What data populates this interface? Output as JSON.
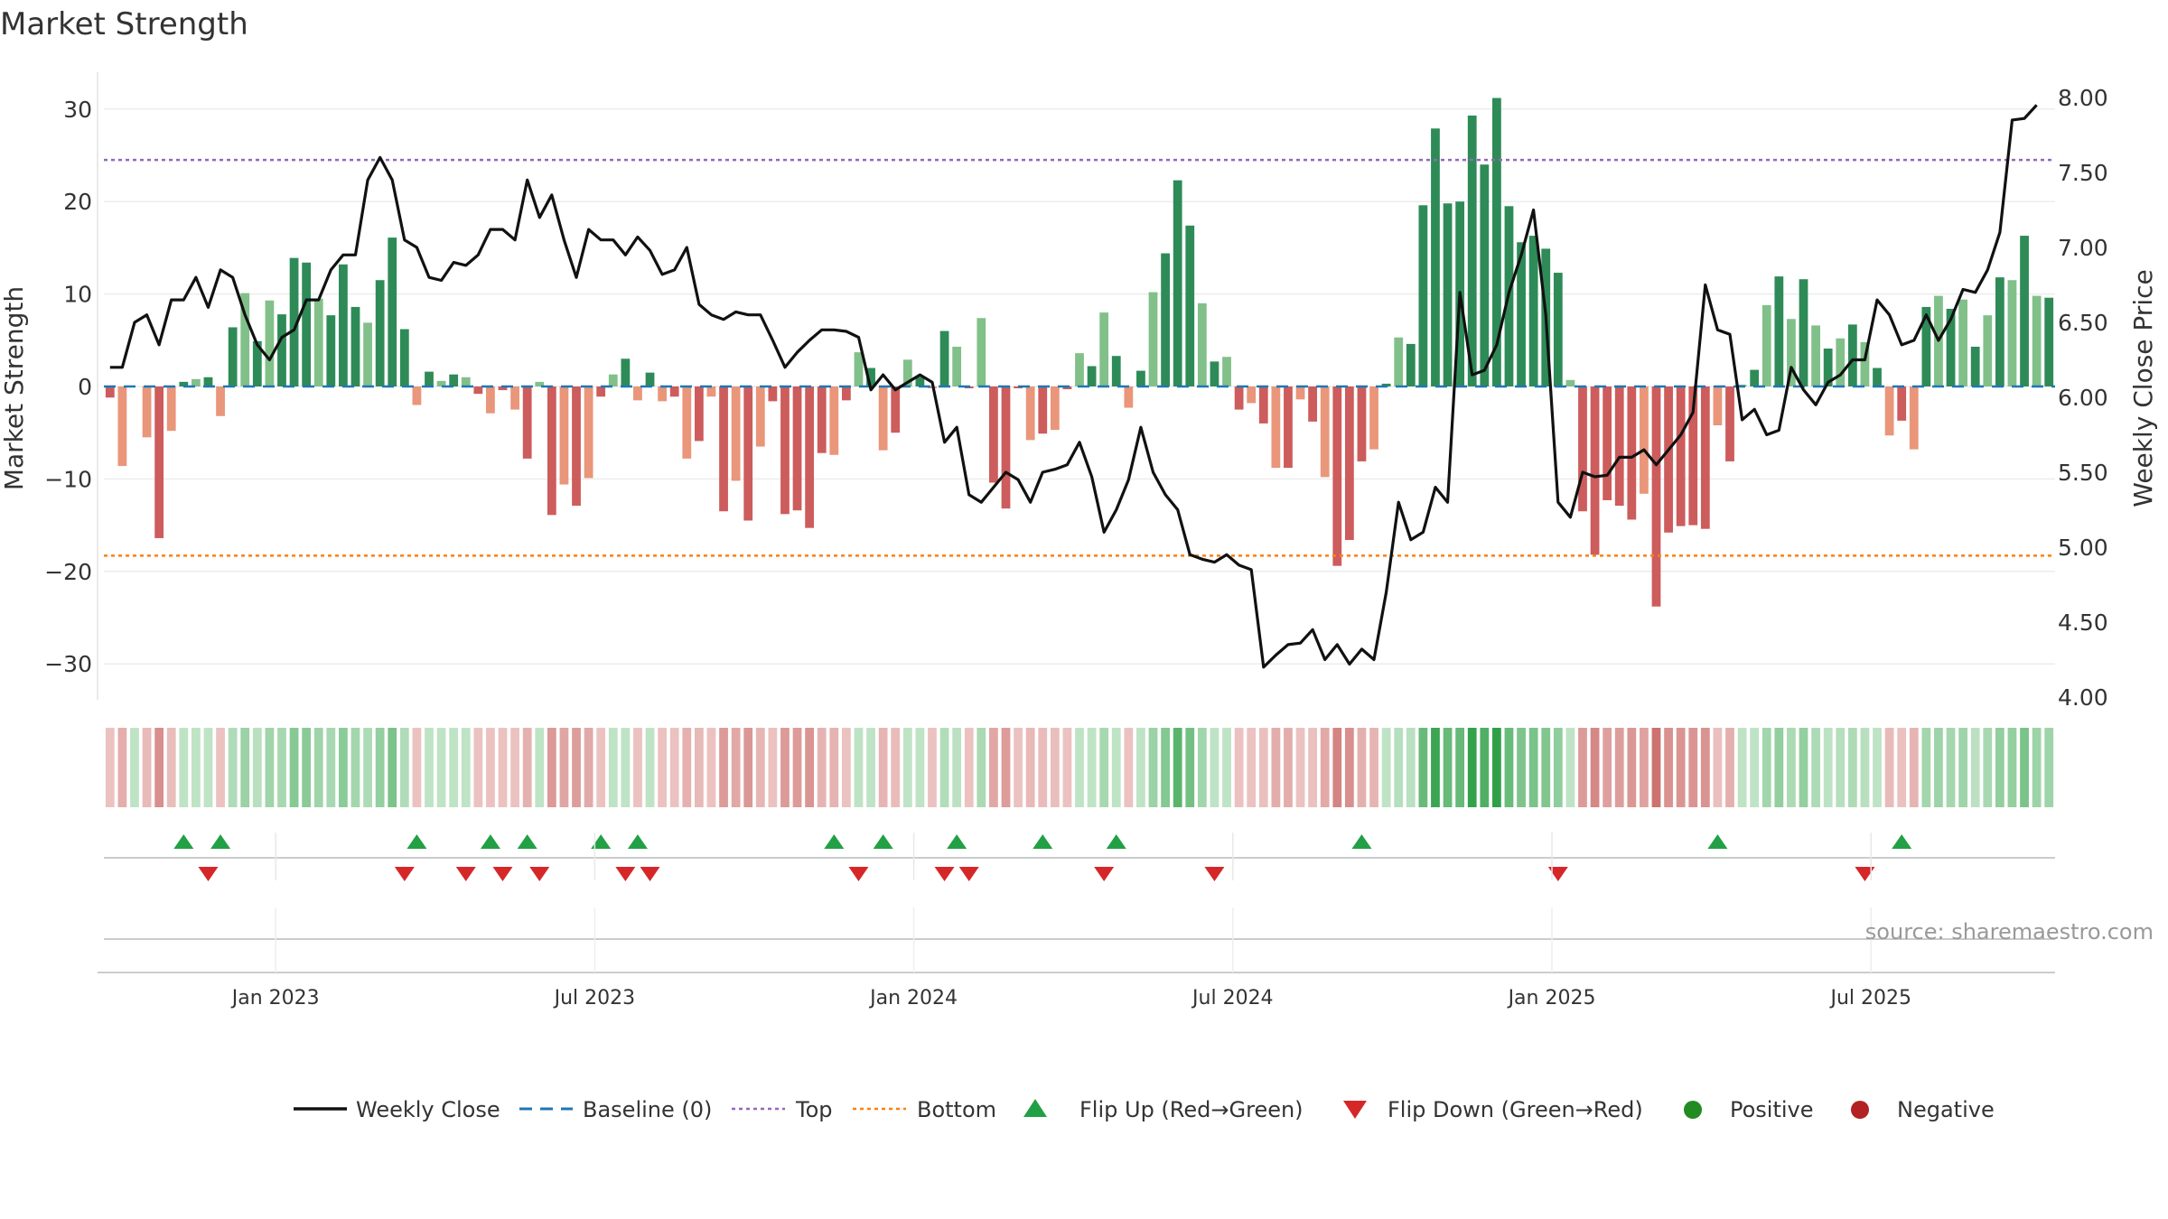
{
  "chart_data": {
    "type": "bar",
    "title": "Market Strength",
    "ylabel": "Market Strength",
    "y2label": "Weekly Close Price",
    "ylim": [
      -34,
      34
    ],
    "y2lim": [
      4.0,
      8.0
    ],
    "yticks": [
      30,
      20,
      10,
      0,
      -10,
      -20,
      -30
    ],
    "yticklabels": [
      "30",
      "20",
      "10",
      "0",
      "−10",
      "−20",
      "−30"
    ],
    "y2ticks": [
      8.0,
      7.5,
      7.0,
      6.5,
      6.0,
      5.5,
      5.0,
      4.5,
      4.0
    ],
    "y2ticklabels": [
      "8.00",
      "7.50",
      "7.00",
      "6.50",
      "6.00",
      "5.50",
      "5.00",
      "4.50",
      "4.00"
    ],
    "top_level": 24.5,
    "bottom_level": -18.3,
    "baseline": 0,
    "start_week_index_of_jan2023": 14,
    "x_tick_labels": [
      "Jan 2023",
      "Jul 2023",
      "Jan 2024",
      "Jul 2024",
      "Jan 2025",
      "Jul 2025"
    ],
    "x_tick_week_index": [
      14,
      40,
      66,
      92,
      118,
      144
    ],
    "strength": [
      -1.2,
      -8.6,
      0,
      -5.5,
      -16.4,
      -4.8,
      0.5,
      0.8,
      1.0,
      -3.2,
      6.4,
      10.1,
      4.9,
      9.3,
      7.8,
      13.9,
      13.4,
      9.5,
      7.7,
      13.2,
      8.6,
      6.9,
      11.5,
      16.1,
      6.2,
      -2.0,
      1.6,
      0.6,
      1.3,
      1.0,
      -0.8,
      -2.9,
      -0.4,
      -2.5,
      -7.8,
      0.5,
      -13.9,
      -10.6,
      -12.9,
      -9.9,
      -1.1,
      1.3,
      3.0,
      -1.5,
      1.5,
      -1.6,
      -1.1,
      -7.8,
      -5.9,
      -1.1,
      -13.5,
      -10.2,
      -14.5,
      -6.5,
      -1.6,
      -13.8,
      -13.4,
      -15.3,
      -7.2,
      -7.4,
      -1.5,
      3.7,
      2.0,
      -6.9,
      -5.0,
      2.9,
      1.0,
      -0.2,
      6.0,
      4.3,
      -0.2,
      7.4,
      -10.4,
      -13.2,
      -0.2,
      -5.8,
      -5.1,
      -4.7,
      -0.3,
      3.6,
      2.2,
      8.0,
      3.3,
      -2.3,
      1.7,
      10.2,
      14.4,
      22.3,
      17.4,
      9.0,
      2.7,
      3.2,
      -2.5,
      -1.8,
      -4.0,
      -8.8,
      -8.8,
      -1.4,
      -3.8,
      -9.8,
      -19.4,
      -16.6,
      -8.1,
      -6.8,
      0.3,
      5.3,
      4.6,
      19.6,
      27.9,
      19.8,
      20.0,
      29.3,
      24.0,
      31.2,
      19.5,
      15.6,
      16.3,
      14.9,
      12.3,
      0.7,
      -13.5,
      -18.2,
      -12.3,
      -12.9,
      -14.4,
      -11.6,
      -23.8,
      -15.8,
      -15.1,
      -15.0,
      -15.4,
      -4.2,
      -8.1,
      0.2,
      1.8,
      8.8,
      11.9,
      7.3,
      11.6,
      6.6,
      4.1,
      5.2,
      6.7,
      4.8,
      2.0,
      -5.3,
      -3.7,
      -6.8,
      8.6,
      9.8,
      8.4,
      9.4,
      4.3,
      7.7,
      11.8,
      11.5,
      16.3,
      9.8,
      9.6
    ],
    "close": [
      6.2,
      6.2,
      6.5,
      6.55,
      6.35,
      6.65,
      6.65,
      6.8,
      6.6,
      6.85,
      6.8,
      6.55,
      6.35,
      6.25,
      6.4,
      6.45,
      6.65,
      6.65,
      6.85,
      6.95,
      6.95,
      7.45,
      7.6,
      7.45,
      7.05,
      7.0,
      6.8,
      6.78,
      6.9,
      6.88,
      6.95,
      7.12,
      7.12,
      7.05,
      7.45,
      7.2,
      7.35,
      7.05,
      6.8,
      7.12,
      7.05,
      7.05,
      6.95,
      7.07,
      6.98,
      6.82,
      6.85,
      7.0,
      6.62,
      6.55,
      6.52,
      6.57,
      6.55,
      6.55,
      6.38,
      6.2,
      6.3,
      6.38,
      6.45,
      6.45,
      6.44,
      6.4,
      6.05,
      6.15,
      6.05,
      6.1,
      6.15,
      6.1,
      5.7,
      5.8,
      5.35,
      5.3,
      5.4,
      5.5,
      5.45,
      5.3,
      5.5,
      5.52,
      5.55,
      5.7,
      5.47,
      5.1,
      5.25,
      5.45,
      5.8,
      5.5,
      5.35,
      5.25,
      4.95,
      4.92,
      4.9,
      4.95,
      4.88,
      4.85,
      4.2,
      4.28,
      4.35,
      4.36,
      4.45,
      4.25,
      4.35,
      4.22,
      4.32,
      4.25,
      4.7,
      5.3,
      5.05,
      5.1,
      5.4,
      5.3,
      6.7,
      6.15,
      6.18,
      6.35,
      6.7,
      6.95,
      7.25,
      6.55,
      5.3,
      5.2,
      5.5,
      5.47,
      5.48,
      5.6,
      5.6,
      5.65,
      5.55,
      5.65,
      5.75,
      5.9,
      6.75,
      6.45,
      6.42,
      5.85,
      5.92,
      5.75,
      5.78,
      6.2,
      6.05,
      5.95,
      6.1,
      6.15,
      6.25,
      6.25,
      6.65,
      6.55,
      6.35,
      6.38,
      6.55,
      6.38,
      6.52,
      6.72,
      6.7,
      6.85,
      7.1,
      7.85,
      7.86,
      7.95
    ],
    "flip_up_weeks": [
      6,
      9,
      25,
      31,
      34,
      40,
      43,
      59,
      63,
      69,
      76,
      82,
      102,
      131,
      146
    ],
    "flip_down_weeks": [
      8,
      24,
      29,
      32,
      35,
      42,
      44,
      61,
      68,
      70,
      81,
      90,
      118,
      143
    ],
    "series": [
      {
        "name": "Market Strength",
        "values_key": "strength"
      },
      {
        "name": "Weekly Close",
        "values_key": "close"
      }
    ]
  },
  "legend": {
    "weekly_close": "Weekly Close",
    "baseline": "Baseline (0)",
    "top": "Top",
    "bottom": "Bottom",
    "flip_up": "Flip Up (Red→Green)",
    "flip_down": "Flip Down (Green→Red)",
    "positive": "Positive",
    "negative": "Negative"
  },
  "source": "source: sharemaestro.com",
  "colors": {
    "pos_strong": "#2e8b57",
    "pos_weak": "#82c08a",
    "neg_strong": "#cd5c5c",
    "neg_weak": "#e9967a",
    "close_line": "#111111",
    "baseline": "#1f77b4",
    "top": "#9467bd",
    "bottom": "#ff7f0e",
    "flip_up": "#22a045",
    "flip_down": "#d62728",
    "positive": "#228b22",
    "negative": "#b22222"
  }
}
